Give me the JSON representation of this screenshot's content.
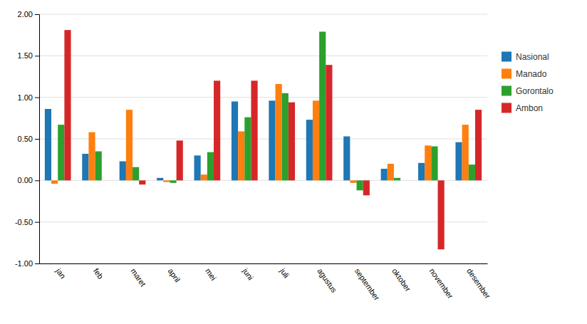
{
  "chart_data": {
    "type": "bar",
    "categories": [
      "jan",
      "feb",
      "maret",
      "april",
      "mei",
      "juni",
      "juli",
      "agustus",
      "september",
      "oktober",
      "november",
      "desember"
    ],
    "series": [
      {
        "name": "Nasional",
        "values": [
          0.86,
          0.32,
          0.23,
          0.03,
          0.3,
          0.95,
          0.96,
          0.73,
          0.53,
          0.14,
          0.21,
          0.46
        ]
      },
      {
        "name": "Manado",
        "values": [
          -0.04,
          0.58,
          0.85,
          -0.02,
          0.07,
          0.59,
          1.16,
          0.96,
          -0.03,
          0.2,
          0.42,
          0.67
        ]
      },
      {
        "name": "Gorontalo",
        "values": [
          0.67,
          0.35,
          0.16,
          -0.03,
          0.34,
          0.76,
          1.05,
          1.79,
          -0.12,
          0.03,
          0.41,
          0.19
        ]
      },
      {
        "name": "Ambon",
        "values": [
          1.81,
          0.0,
          -0.05,
          0.48,
          1.2,
          1.2,
          0.94,
          1.39,
          -0.18,
          0.0,
          -0.83,
          0.85
        ]
      }
    ],
    "ylim": [
      -1.0,
      2.0
    ],
    "yticks": [
      {
        "value": -1.0,
        "label": "-1.00"
      },
      {
        "value": -0.5,
        "label": "-0.50"
      },
      {
        "value": 0.0,
        "label": "0.00"
      },
      {
        "value": 0.5,
        "label": "0.50"
      },
      {
        "value": 1.0,
        "label": "1.00"
      },
      {
        "value": 1.5,
        "label": "1.50"
      },
      {
        "value": 2.0,
        "label": "2.00"
      }
    ],
    "grid": true,
    "legend": "right"
  }
}
